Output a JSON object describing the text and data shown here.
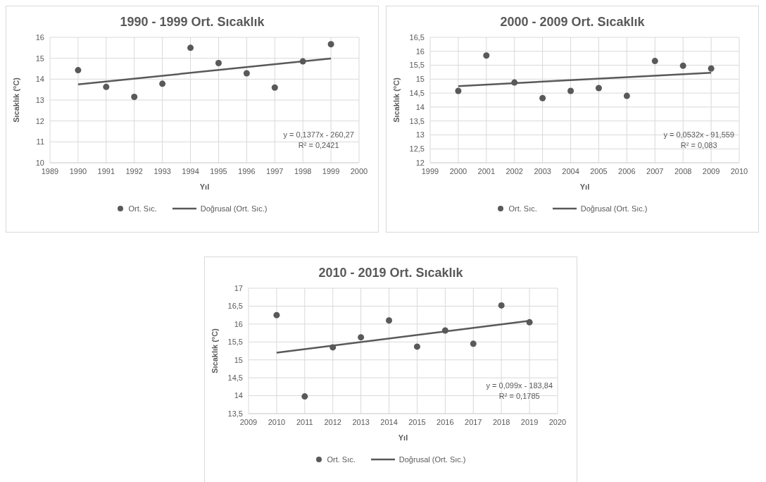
{
  "chart_data": [
    {
      "type": "scatter",
      "title": "1990 - 1999 Ort. Sıcaklık",
      "xlabel": "Yıl",
      "ylabel": "Sıcaklık (°C)",
      "xlim": [
        1989,
        2000
      ],
      "xticks": [
        1989,
        1990,
        1991,
        1992,
        1993,
        1994,
        1995,
        1996,
        1997,
        1998,
        1999,
        2000
      ],
      "ylim": [
        10,
        16
      ],
      "yticks": [
        10,
        11,
        12,
        13,
        14,
        15,
        16
      ],
      "grid": true,
      "legend": "bottom",
      "annotations": [
        "y = 0,1377x - 260,27",
        "R² = 0,2421"
      ],
      "series": [
        {
          "name": "Ort. Sıc.",
          "color": "#595959",
          "marker": "circle",
          "x": [
            1990,
            1991,
            1992,
            1993,
            1994,
            1995,
            1996,
            1997,
            1998,
            1999
          ],
          "values": [
            14.43,
            13.63,
            13.15,
            13.78,
            15.5,
            14.77,
            14.28,
            13.6,
            14.85,
            15.67
          ]
        },
        {
          "type": "line",
          "name": "Doğrusal (Ort. Sıc.)",
          "color": "#595959",
          "x": [
            1990,
            1999
          ],
          "values": [
            13.75,
            14.99
          ]
        }
      ]
    },
    {
      "type": "scatter",
      "title": "2000 - 2009 Ort. Sıcaklık",
      "xlabel": "Yıl",
      "ylabel": "Sıcaklık (°C)",
      "xlim": [
        1999,
        2010
      ],
      "xticks": [
        1999,
        2000,
        2001,
        2002,
        2003,
        2004,
        2005,
        2006,
        2007,
        2008,
        2009,
        2010
      ],
      "ylim": [
        12,
        16.5
      ],
      "yticks": [
        12,
        {
          "value": 12.5,
          "label": "12,5"
        },
        13,
        {
          "value": 13.5,
          "label": "13,5"
        },
        14,
        {
          "value": 14.5,
          "label": "14,5"
        },
        15,
        {
          "value": 15.5,
          "label": "15,5"
        },
        16,
        {
          "value": 16.5,
          "label": "16,5"
        }
      ],
      "grid": true,
      "legend": "bottom",
      "annotations": [
        "y = 0,0532x - 91,559",
        "R² = 0,083"
      ],
      "series": [
        {
          "name": "Ort. Sıc.",
          "color": "#595959",
          "marker": "circle",
          "x": [
            2000,
            2001,
            2002,
            2003,
            2004,
            2005,
            2006,
            2007,
            2008,
            2009
          ],
          "values": [
            14.58,
            15.85,
            14.88,
            14.32,
            14.58,
            14.68,
            14.4,
            15.65,
            15.48,
            15.38
          ]
        },
        {
          "type": "line",
          "name": "Doğrusal (Ort. Sıc.)",
          "color": "#595959",
          "x": [
            2000,
            2009
          ],
          "values": [
            14.75,
            15.23
          ]
        }
      ]
    },
    {
      "type": "scatter",
      "title": "2010 - 2019 Ort. Sıcaklık",
      "xlabel": "Yıl",
      "ylabel": "Sıcaklık (°C)",
      "xlim": [
        2009,
        2020
      ],
      "xticks": [
        2009,
        2010,
        2011,
        2012,
        2013,
        2014,
        2015,
        2016,
        2017,
        2018,
        2019,
        2020
      ],
      "ylim": [
        13.5,
        17
      ],
      "yticks": [
        {
          "value": 13.5,
          "label": "13,5"
        },
        14,
        {
          "value": 14.5,
          "label": "14,5"
        },
        15,
        {
          "value": 15.5,
          "label": "15,5"
        },
        16,
        {
          "value": 16.5,
          "label": "16,5"
        },
        17
      ],
      "grid": true,
      "legend": "bottom",
      "annotations": [
        "y = 0,099x - 183,84",
        "R² = 0,1785"
      ],
      "series": [
        {
          "name": "Ort. Sıc.",
          "color": "#595959",
          "marker": "circle",
          "x": [
            2010,
            2011,
            2012,
            2013,
            2014,
            2015,
            2016,
            2017,
            2018,
            2019
          ],
          "values": [
            16.25,
            13.98,
            15.35,
            15.63,
            16.1,
            15.37,
            15.82,
            15.45,
            16.52,
            16.05
          ]
        },
        {
          "type": "line",
          "name": "Doğrusal (Ort. Sıc.)",
          "color": "#595959",
          "x": [
            2010,
            2019
          ],
          "values": [
            15.2,
            16.09
          ]
        }
      ]
    }
  ]
}
